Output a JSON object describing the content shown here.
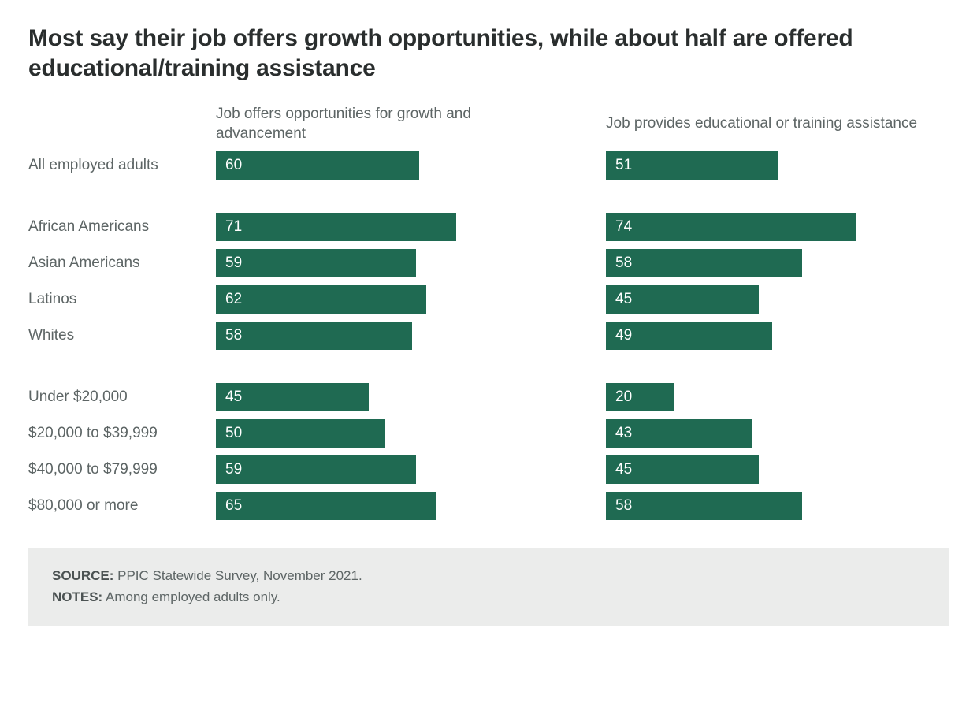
{
  "title": "Most say their job offers growth opportunities, while about half are offered educational/training assistance",
  "columns": [
    "Job offers opportunities for growth and advancement",
    "Job provides educational or training assistance"
  ],
  "bar_color": "#1f6a52",
  "bar_text_color": "#ffffff",
  "label_color": "#5d6565",
  "max_value": 100,
  "bar_max_width_pct": 100,
  "value_scale": 4.3,
  "groups": [
    {
      "rows": [
        {
          "label": "All employed adults",
          "values": [
            60,
            51
          ]
        }
      ]
    },
    {
      "rows": [
        {
          "label": "African Americans",
          "values": [
            71,
            74
          ]
        },
        {
          "label": "Asian Americans",
          "values": [
            59,
            58
          ]
        },
        {
          "label": "Latinos",
          "values": [
            62,
            45
          ]
        },
        {
          "label": "Whites",
          "values": [
            58,
            49
          ]
        }
      ]
    },
    {
      "rows": [
        {
          "label": "Under $20,000",
          "values": [
            45,
            20
          ]
        },
        {
          "label": "$20,000 to $39,999",
          "values": [
            50,
            43
          ]
        },
        {
          "label": "$40,000 to $79,999",
          "values": [
            59,
            45
          ]
        },
        {
          "label": "$80,000 or more",
          "values": [
            65,
            58
          ]
        }
      ]
    }
  ],
  "footer": {
    "source_label": "SOURCE:",
    "source_text": " PPIC Statewide Survey, November 2021.",
    "notes_label": "NOTES:",
    "notes_text": " Among employed adults only."
  }
}
